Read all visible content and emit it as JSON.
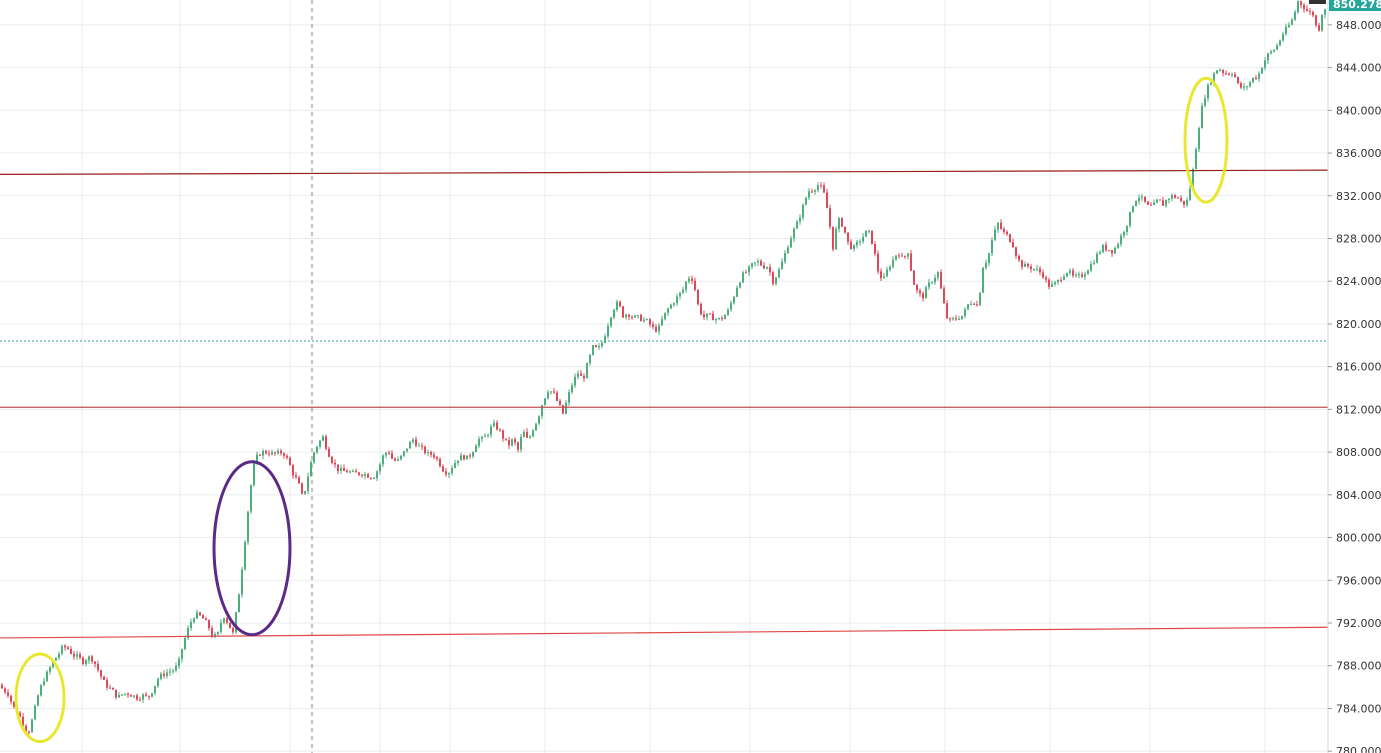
{
  "chart_data": {
    "type": "candlestick",
    "title": "",
    "xlabel": "",
    "ylabel": "",
    "ylim": [
      779.5,
      851.5
    ],
    "grid": true,
    "y_ticks": [
      "780.000",
      "784.000",
      "788.000",
      "792.000",
      "796.000",
      "800.000",
      "804.000",
      "808.000",
      "812.000",
      "816.000",
      "820.000",
      "824.000",
      "828.000",
      "832.000",
      "836.000",
      "840.000",
      "844.000",
      "848.000"
    ],
    "y_tick_values": [
      780,
      784,
      788,
      792,
      796,
      800,
      804,
      808,
      812,
      816,
      820,
      824,
      828,
      832,
      836,
      840,
      844,
      848
    ],
    "last_price": "850.278",
    "series": [
      {
        "kind": "candles",
        "price_path": [
          [
            0,
            786.2
          ],
          [
            5,
            785.8
          ],
          [
            10,
            785.4
          ],
          [
            15,
            784.2
          ],
          [
            20,
            783.6
          ],
          [
            25,
            782.6
          ],
          [
            30,
            781.6
          ],
          [
            35,
            783.2
          ],
          [
            40,
            785.2
          ],
          [
            45,
            786.6
          ],
          [
            50,
            787.4
          ],
          [
            55,
            788.4
          ],
          [
            60,
            789.0
          ],
          [
            65,
            789.8
          ],
          [
            70,
            789.6
          ],
          [
            75,
            789.0
          ],
          [
            80,
            788.8
          ],
          [
            85,
            788.4
          ],
          [
            90,
            788.8
          ],
          [
            95,
            788.6
          ],
          [
            100,
            787.6
          ],
          [
            105,
            786.6
          ],
          [
            110,
            786.0
          ],
          [
            115,
            785.6
          ],
          [
            120,
            785.0
          ],
          [
            125,
            785.4
          ],
          [
            130,
            785.4
          ],
          [
            135,
            785.2
          ],
          [
            140,
            785.0
          ],
          [
            145,
            785.2
          ],
          [
            150,
            785.0
          ],
          [
            155,
            785.8
          ],
          [
            160,
            786.8
          ],
          [
            165,
            787.2
          ],
          [
            170,
            787.4
          ],
          [
            175,
            787.6
          ],
          [
            180,
            788.0
          ],
          [
            185,
            790.0
          ],
          [
            190,
            791.4
          ],
          [
            195,
            792.6
          ],
          [
            200,
            792.8
          ],
          [
            205,
            792.4
          ],
          [
            210,
            791.8
          ],
          [
            215,
            790.6
          ],
          [
            220,
            791.0
          ],
          [
            225,
            792.8
          ],
          [
            230,
            792.0
          ],
          [
            235,
            791.0
          ],
          [
            240,
            794.0
          ],
          [
            245,
            798.0
          ],
          [
            250,
            802.5
          ],
          [
            255,
            806.5
          ],
          [
            260,
            807.8
          ],
          [
            265,
            808.0
          ],
          [
            270,
            808.0
          ],
          [
            275,
            807.8
          ],
          [
            280,
            807.9
          ],
          [
            285,
            808.0
          ],
          [
            290,
            807.2
          ],
          [
            295,
            806.0
          ],
          [
            300,
            805.2
          ],
          [
            305,
            803.6
          ],
          [
            310,
            805.8
          ],
          [
            315,
            807.8
          ],
          [
            320,
            808.8
          ],
          [
            325,
            809.4
          ],
          [
            330,
            808.0
          ],
          [
            335,
            807.0
          ],
          [
            340,
            806.4
          ],
          [
            345,
            806.2
          ],
          [
            350,
            806.2
          ],
          [
            355,
            806.0
          ],
          [
            360,
            806.0
          ],
          [
            365,
            806.0
          ],
          [
            370,
            805.8
          ],
          [
            375,
            805.6
          ],
          [
            380,
            806.4
          ],
          [
            385,
            807.6
          ],
          [
            390,
            808.2
          ],
          [
            395,
            807.2
          ],
          [
            400,
            807.2
          ],
          [
            405,
            807.8
          ],
          [
            410,
            808.6
          ],
          [
            415,
            809.2
          ],
          [
            420,
            808.6
          ],
          [
            425,
            808.2
          ],
          [
            430,
            807.8
          ],
          [
            435,
            807.8
          ],
          [
            440,
            807.2
          ],
          [
            445,
            806.4
          ],
          [
            450,
            806.0
          ],
          [
            455,
            806.8
          ],
          [
            460,
            807.4
          ],
          [
            465,
            807.6
          ],
          [
            470,
            807.4
          ],
          [
            475,
            808.2
          ],
          [
            480,
            809.2
          ],
          [
            485,
            809.2
          ],
          [
            490,
            809.8
          ],
          [
            495,
            810.6
          ],
          [
            500,
            810.2
          ],
          [
            505,
            809.4
          ],
          [
            510,
            808.6
          ],
          [
            515,
            809.2
          ],
          [
            520,
            808.2
          ],
          [
            525,
            810.0
          ],
          [
            530,
            809.0
          ],
          [
            535,
            810.2
          ],
          [
            540,
            811.2
          ],
          [
            545,
            812.8
          ],
          [
            550,
            813.8
          ],
          [
            555,
            813.6
          ],
          [
            560,
            812.6
          ],
          [
            565,
            811.6
          ],
          [
            570,
            813.2
          ],
          [
            575,
            814.6
          ],
          [
            580,
            815.4
          ],
          [
            585,
            814.8
          ],
          [
            590,
            816.4
          ],
          [
            595,
            817.8
          ],
          [
            600,
            817.6
          ],
          [
            605,
            818.4
          ],
          [
            610,
            820.0
          ],
          [
            615,
            821.4
          ],
          [
            620,
            822.0
          ],
          [
            625,
            820.8
          ],
          [
            630,
            821.0
          ],
          [
            635,
            820.6
          ],
          [
            640,
            820.6
          ],
          [
            645,
            820.4
          ],
          [
            650,
            820.2
          ],
          [
            655,
            819.6
          ],
          [
            660,
            819.4
          ],
          [
            665,
            820.6
          ],
          [
            670,
            821.4
          ],
          [
            675,
            822.0
          ],
          [
            680,
            822.6
          ],
          [
            685,
            823.2
          ],
          [
            690,
            824.4
          ],
          [
            695,
            824.2
          ],
          [
            700,
            821.8
          ],
          [
            705,
            820.6
          ],
          [
            710,
            820.8
          ],
          [
            715,
            820.6
          ],
          [
            720,
            820.4
          ],
          [
            725,
            820.6
          ],
          [
            730,
            821.2
          ],
          [
            735,
            822.4
          ],
          [
            740,
            823.8
          ],
          [
            745,
            824.6
          ],
          [
            750,
            825.0
          ],
          [
            755,
            825.6
          ],
          [
            760,
            825.8
          ],
          [
            765,
            825.4
          ],
          [
            770,
            825.4
          ],
          [
            775,
            824.0
          ],
          [
            780,
            824.8
          ],
          [
            785,
            826.0
          ],
          [
            790,
            827.4
          ],
          [
            795,
            828.6
          ],
          [
            800,
            829.6
          ],
          [
            805,
            831.0
          ],
          [
            810,
            832.4
          ],
          [
            815,
            832.6
          ],
          [
            820,
            833.0
          ],
          [
            825,
            832.6
          ],
          [
            830,
            830.4
          ],
          [
            835,
            827.2
          ],
          [
            840,
            829.8
          ],
          [
            845,
            829.2
          ],
          [
            850,
            827.6
          ],
          [
            855,
            827.0
          ],
          [
            860,
            827.6
          ],
          [
            865,
            828.2
          ],
          [
            870,
            828.8
          ],
          [
            875,
            827.4
          ],
          [
            880,
            825.0
          ],
          [
            885,
            824.0
          ],
          [
            890,
            825.2
          ],
          [
            895,
            826.0
          ],
          [
            900,
            826.8
          ],
          [
            905,
            826.0
          ],
          [
            910,
            826.8
          ],
          [
            915,
            824.0
          ],
          [
            920,
            822.8
          ],
          [
            925,
            822.6
          ],
          [
            930,
            823.6
          ],
          [
            935,
            824.2
          ],
          [
            940,
            824.8
          ],
          [
            945,
            822.2
          ],
          [
            950,
            820.2
          ],
          [
            955,
            820.4
          ],
          [
            960,
            820.6
          ],
          [
            965,
            820.8
          ],
          [
            970,
            821.8
          ],
          [
            975,
            822.2
          ],
          [
            980,
            821.6
          ],
          [
            985,
            825.4
          ],
          [
            990,
            826.2
          ],
          [
            995,
            828.2
          ],
          [
            1000,
            829.4
          ],
          [
            1005,
            828.6
          ],
          [
            1010,
            828.2
          ],
          [
            1015,
            827.4
          ],
          [
            1020,
            826.0
          ],
          [
            1025,
            825.4
          ],
          [
            1030,
            825.4
          ],
          [
            1035,
            825.2
          ],
          [
            1040,
            825.0
          ],
          [
            1045,
            824.6
          ],
          [
            1050,
            823.6
          ],
          [
            1055,
            823.6
          ],
          [
            1060,
            824.0
          ],
          [
            1065,
            824.6
          ],
          [
            1070,
            825.0
          ],
          [
            1075,
            824.4
          ],
          [
            1080,
            824.4
          ],
          [
            1085,
            824.6
          ],
          [
            1090,
            825.2
          ],
          [
            1095,
            825.8
          ],
          [
            1100,
            826.6
          ],
          [
            1105,
            827.2
          ],
          [
            1110,
            827.0
          ],
          [
            1115,
            826.8
          ],
          [
            1120,
            827.6
          ],
          [
            1125,
            828.6
          ],
          [
            1130,
            829.6
          ],
          [
            1135,
            831.2
          ],
          [
            1140,
            832.0
          ],
          [
            1145,
            831.6
          ],
          [
            1150,
            831.0
          ],
          [
            1155,
            831.0
          ],
          [
            1160,
            831.6
          ],
          [
            1165,
            831.2
          ],
          [
            1170,
            831.8
          ],
          [
            1175,
            832.0
          ],
          [
            1180,
            831.8
          ],
          [
            1185,
            831.2
          ],
          [
            1190,
            831.6
          ],
          [
            1195,
            834.4
          ],
          [
            1200,
            838.0
          ],
          [
            1205,
            840.8
          ],
          [
            1210,
            842.2
          ],
          [
            1215,
            843.2
          ],
          [
            1220,
            844.0
          ],
          [
            1225,
            843.6
          ],
          [
            1230,
            843.4
          ],
          [
            1235,
            843.6
          ],
          [
            1240,
            842.4
          ],
          [
            1245,
            842.0
          ],
          [
            1250,
            842.4
          ],
          [
            1255,
            843.0
          ],
          [
            1260,
            843.2
          ],
          [
            1265,
            844.4
          ],
          [
            1270,
            845.2
          ],
          [
            1275,
            845.6
          ],
          [
            1280,
            846.2
          ],
          [
            1285,
            847.2
          ],
          [
            1290,
            847.8
          ],
          [
            1295,
            848.6
          ],
          [
            1300,
            850.2
          ],
          [
            1305,
            849.8
          ],
          [
            1310,
            849.2
          ],
          [
            1315,
            849.0
          ],
          [
            1320,
            847.2
          ],
          [
            1325,
            849.6
          ]
        ]
      }
    ],
    "trend_lines": [
      {
        "y1": 790.6,
        "y2": 791.6,
        "color": "#e04848"
      },
      {
        "y1": 812.2,
        "y2": 812.2,
        "color": "#c05050"
      },
      {
        "y1": 834.0,
        "y2": 834.4,
        "color": "#9a1e1e"
      }
    ],
    "horizontal_levels": [
      {
        "y": 818.4,
        "style": "dotted",
        "color": "#26a69a"
      }
    ],
    "vertical_marker": {
      "x_index": 312,
      "style": "dashed",
      "color": "#888888"
    },
    "annotations": [
      {
        "type": "ellipse",
        "color": "#e8e830",
        "cx_index": 40,
        "cy": 785.0,
        "rx": 24,
        "ry_price": 4.1
      },
      {
        "type": "ellipse",
        "color": "#5b2a86",
        "cx_index": 252,
        "cy": 799.0,
        "rx": 38,
        "ry_price": 8.1
      },
      {
        "type": "ellipse",
        "color": "#e8e830",
        "cx_index": 1206,
        "cy": 837.2,
        "rx": 21,
        "ry_price": 5.8
      }
    ],
    "colors": {
      "up": "#26a69a",
      "up_body": "#4caf7d",
      "down": "#e04858",
      "grid": "#e8ecef",
      "axis_text": "#333333",
      "badge": "#26a69a"
    }
  }
}
